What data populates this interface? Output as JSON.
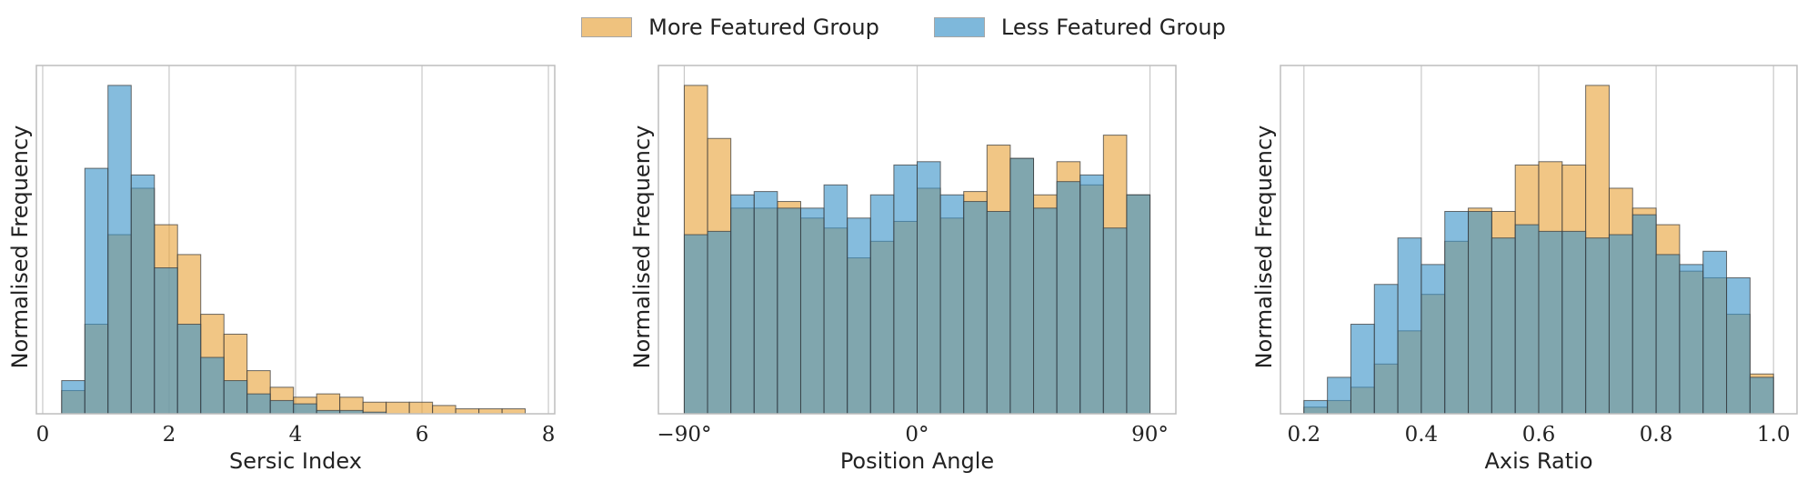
{
  "colors": {
    "more_featured": "#e8a33a",
    "less_featured": "#3a93c8",
    "grid": "#c8c8c8",
    "frame": "#bdbdbd"
  },
  "legend": [
    {
      "label": "More Featured Group",
      "color": "#e8a33a"
    },
    {
      "label": "Less Featured Group",
      "color": "#3a93c8"
    }
  ],
  "chart_data": [
    {
      "type": "bar",
      "xlabel": "Sersic Index",
      "ylabel": "Normalised Frequency",
      "xlim": [
        -0.1,
        8.1
      ],
      "ylim": [
        0,
        1.05
      ],
      "xticks": [
        0,
        2,
        4,
        6,
        8
      ],
      "xtick_labels": [
        "0",
        "2",
        "4",
        "6",
        "8"
      ],
      "grid": true,
      "bin_edges": [
        0.3,
        0.667,
        1.033,
        1.4,
        1.767,
        2.133,
        2.5,
        2.867,
        3.233,
        3.6,
        3.967,
        4.333,
        4.7,
        5.067,
        5.433,
        5.8,
        6.167,
        6.533,
        6.9,
        7.267,
        7.633
      ],
      "series": [
        {
          "name": "More Featured Group",
          "values": [
            0.07,
            0.27,
            0.54,
            0.68,
            0.57,
            0.48,
            0.3,
            0.24,
            0.13,
            0.08,
            0.05,
            0.06,
            0.05,
            0.035,
            0.035,
            0.035,
            0.025,
            0.015,
            0.015,
            0.015
          ]
        },
        {
          "name": "Less Featured Group",
          "values": [
            0.1,
            0.74,
            0.99,
            0.72,
            0.44,
            0.27,
            0.17,
            0.1,
            0.06,
            0.04,
            0.03,
            0.01,
            0.01,
            0.005,
            0,
            0,
            0,
            0,
            0,
            0
          ]
        }
      ]
    },
    {
      "type": "bar",
      "xlabel": "Position Angle",
      "ylabel": "Normalised Frequency",
      "xlim": [
        -100,
        100
      ],
      "ylim": [
        0,
        1.05
      ],
      "xticks": [
        -90,
        0,
        90
      ],
      "xtick_labels": [
        "−90°",
        "0°",
        "90°"
      ],
      "grid": true,
      "bin_edges": [
        -90,
        -81,
        -72,
        -63,
        -54,
        -45,
        -36,
        -27,
        -18,
        -9,
        0,
        9,
        18,
        27,
        36,
        45,
        54,
        63,
        72,
        81,
        90
      ],
      "series": [
        {
          "name": "More Featured Group",
          "values": [
            0.99,
            0.83,
            0.62,
            0.62,
            0.64,
            0.59,
            0.56,
            0.47,
            0.52,
            0.58,
            0.68,
            0.59,
            0.67,
            0.81,
            0.77,
            0.66,
            0.76,
            0.69,
            0.84,
            0.66
          ]
        },
        {
          "name": "Less Featured Group",
          "values": [
            0.54,
            0.55,
            0.66,
            0.67,
            0.62,
            0.62,
            0.69,
            0.59,
            0.66,
            0.75,
            0.76,
            0.66,
            0.64,
            0.61,
            0.77,
            0.62,
            0.7,
            0.72,
            0.56,
            0.66
          ]
        }
      ]
    },
    {
      "type": "bar",
      "xlabel": "Axis Ratio",
      "ylabel": "Normalised Frequency",
      "xlim": [
        0.16,
        1.04
      ],
      "ylim": [
        0,
        1.05
      ],
      "xticks": [
        0.2,
        0.4,
        0.6,
        0.8,
        1.0
      ],
      "xtick_labels": [
        "0.2",
        "0.4",
        "0.6",
        "0.8",
        "1.0"
      ],
      "grid": true,
      "bin_edges": [
        0.2,
        0.24,
        0.28,
        0.32,
        0.36,
        0.4,
        0.44,
        0.48,
        0.52,
        0.56,
        0.6,
        0.64,
        0.68,
        0.72,
        0.76,
        0.8,
        0.84,
        0.88,
        0.92,
        0.96,
        1.0
      ],
      "series": [
        {
          "name": "More Featured Group",
          "values": [
            0.02,
            0.04,
            0.08,
            0.15,
            0.25,
            0.36,
            0.52,
            0.62,
            0.61,
            0.75,
            0.76,
            0.75,
            0.99,
            0.68,
            0.62,
            0.57,
            0.43,
            0.41,
            0.3,
            0.12
          ]
        },
        {
          "name": "Less Featured Group",
          "values": [
            0.04,
            0.11,
            0.27,
            0.39,
            0.53,
            0.45,
            0.61,
            0.61,
            0.53,
            0.57,
            0.55,
            0.55,
            0.53,
            0.54,
            0.6,
            0.48,
            0.45,
            0.49,
            0.41,
            0.11
          ]
        }
      ]
    }
  ]
}
